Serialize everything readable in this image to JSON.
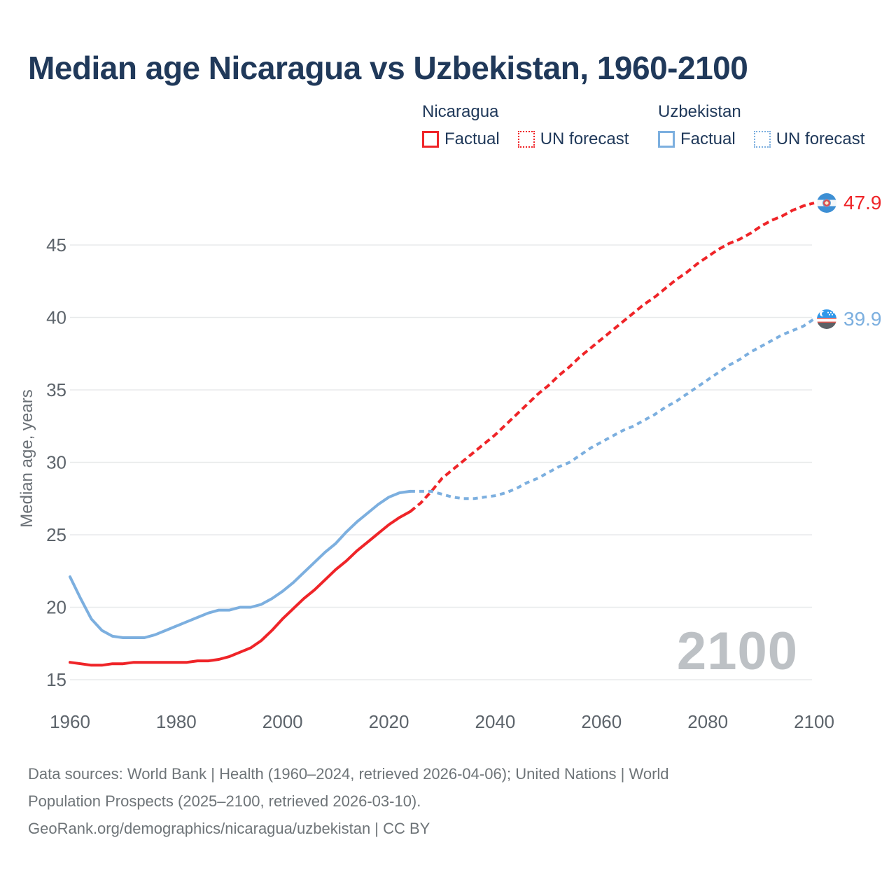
{
  "title": "Median age Nicaragua vs Uzbekistan, 1960-2100",
  "legend": {
    "groups": [
      {
        "country": "Nicaragua",
        "color": "#ef2428",
        "items": [
          {
            "label": "Factual",
            "style": "solid"
          },
          {
            "label": "UN forecast",
            "style": "dotted"
          }
        ]
      },
      {
        "country": "Uzbekistan",
        "color": "#7cafdf",
        "items": [
          {
            "label": "Factual",
            "style": "solid"
          },
          {
            "label": "UN forecast",
            "style": "dotted"
          }
        ]
      }
    ]
  },
  "chart_data": {
    "type": "line",
    "title": "Median age Nicaragua vs Uzbekistan, 1960-2100",
    "xlabel": "",
    "ylabel": "Median age, years",
    "xlim": [
      1960,
      2100
    ],
    "ylim": [
      15,
      45
    ],
    "grid": "horizontal",
    "legend_position": "top",
    "x_ticks": [
      1960,
      1980,
      2000,
      2020,
      2040,
      2060,
      2080,
      2100
    ],
    "y_ticks": [
      15,
      20,
      25,
      30,
      35,
      40,
      45
    ],
    "watermark": "2100",
    "series": [
      {
        "name": "Nicaragua Factual",
        "country": "Nicaragua",
        "kind": "factual",
        "color": "#ef2428",
        "line": "solid",
        "points": [
          [
            1960,
            16.2
          ],
          [
            1962,
            16.1
          ],
          [
            1964,
            16.0
          ],
          [
            1966,
            16.0
          ],
          [
            1968,
            16.1
          ],
          [
            1970,
            16.1
          ],
          [
            1972,
            16.2
          ],
          [
            1974,
            16.2
          ],
          [
            1976,
            16.2
          ],
          [
            1978,
            16.2
          ],
          [
            1980,
            16.2
          ],
          [
            1982,
            16.2
          ],
          [
            1984,
            16.3
          ],
          [
            1986,
            16.3
          ],
          [
            1988,
            16.4
          ],
          [
            1990,
            16.6
          ],
          [
            1992,
            16.9
          ],
          [
            1994,
            17.2
          ],
          [
            1996,
            17.7
          ],
          [
            1998,
            18.4
          ],
          [
            2000,
            19.2
          ],
          [
            2002,
            19.9
          ],
          [
            2004,
            20.6
          ],
          [
            2006,
            21.2
          ],
          [
            2008,
            21.9
          ],
          [
            2010,
            22.6
          ],
          [
            2012,
            23.2
          ],
          [
            2014,
            23.9
          ],
          [
            2016,
            24.5
          ],
          [
            2018,
            25.1
          ],
          [
            2020,
            25.7
          ],
          [
            2022,
            26.2
          ],
          [
            2024,
            26.6
          ]
        ]
      },
      {
        "name": "Nicaragua UN forecast",
        "country": "Nicaragua",
        "kind": "forecast",
        "color": "#ef2428",
        "line": "dashed",
        "points": [
          [
            2024,
            26.6
          ],
          [
            2026,
            27.2
          ],
          [
            2028,
            28.0
          ],
          [
            2030,
            28.9
          ],
          [
            2032,
            29.5
          ],
          [
            2034,
            30.1
          ],
          [
            2036,
            30.7
          ],
          [
            2038,
            31.3
          ],
          [
            2040,
            31.9
          ],
          [
            2042,
            32.6
          ],
          [
            2044,
            33.3
          ],
          [
            2046,
            34.0
          ],
          [
            2048,
            34.7
          ],
          [
            2050,
            35.3
          ],
          [
            2052,
            36.0
          ],
          [
            2054,
            36.6
          ],
          [
            2056,
            37.3
          ],
          [
            2058,
            37.9
          ],
          [
            2060,
            38.5
          ],
          [
            2062,
            39.1
          ],
          [
            2064,
            39.7
          ],
          [
            2066,
            40.3
          ],
          [
            2068,
            40.9
          ],
          [
            2070,
            41.4
          ],
          [
            2072,
            42.0
          ],
          [
            2074,
            42.6
          ],
          [
            2076,
            43.1
          ],
          [
            2078,
            43.7
          ],
          [
            2080,
            44.2
          ],
          [
            2082,
            44.7
          ],
          [
            2084,
            45.1
          ],
          [
            2086,
            45.4
          ],
          [
            2088,
            45.8
          ],
          [
            2090,
            46.3
          ],
          [
            2092,
            46.7
          ],
          [
            2094,
            47.0
          ],
          [
            2096,
            47.4
          ],
          [
            2098,
            47.7
          ],
          [
            2100,
            47.9
          ]
        ]
      },
      {
        "name": "Uzbekistan Factual",
        "country": "Uzbekistan",
        "kind": "factual",
        "color": "#7cafdf",
        "line": "solid",
        "points": [
          [
            1960,
            22.1
          ],
          [
            1962,
            20.6
          ],
          [
            1964,
            19.2
          ],
          [
            1966,
            18.4
          ],
          [
            1968,
            18.0
          ],
          [
            1970,
            17.9
          ],
          [
            1972,
            17.9
          ],
          [
            1974,
            17.9
          ],
          [
            1976,
            18.1
          ],
          [
            1978,
            18.4
          ],
          [
            1980,
            18.7
          ],
          [
            1982,
            19.0
          ],
          [
            1984,
            19.3
          ],
          [
            1986,
            19.6
          ],
          [
            1988,
            19.8
          ],
          [
            1990,
            19.8
          ],
          [
            1992,
            20.0
          ],
          [
            1994,
            20.0
          ],
          [
            1996,
            20.2
          ],
          [
            1998,
            20.6
          ],
          [
            2000,
            21.1
          ],
          [
            2002,
            21.7
          ],
          [
            2004,
            22.4
          ],
          [
            2006,
            23.1
          ],
          [
            2008,
            23.8
          ],
          [
            2010,
            24.4
          ],
          [
            2012,
            25.2
          ],
          [
            2014,
            25.9
          ],
          [
            2016,
            26.5
          ],
          [
            2018,
            27.1
          ],
          [
            2020,
            27.6
          ],
          [
            2022,
            27.9
          ],
          [
            2024,
            28.0
          ]
        ]
      },
      {
        "name": "Uzbekistan UN forecast",
        "country": "Uzbekistan",
        "kind": "forecast",
        "color": "#7cafdf",
        "line": "dashed",
        "points": [
          [
            2024,
            28.0
          ],
          [
            2026,
            28.0
          ],
          [
            2028,
            28.0
          ],
          [
            2030,
            27.8
          ],
          [
            2032,
            27.6
          ],
          [
            2034,
            27.5
          ],
          [
            2036,
            27.5
          ],
          [
            2038,
            27.6
          ],
          [
            2040,
            27.7
          ],
          [
            2042,
            27.9
          ],
          [
            2044,
            28.2
          ],
          [
            2046,
            28.6
          ],
          [
            2048,
            28.9
          ],
          [
            2050,
            29.3
          ],
          [
            2052,
            29.7
          ],
          [
            2054,
            30.0
          ],
          [
            2056,
            30.5
          ],
          [
            2058,
            31.0
          ],
          [
            2060,
            31.4
          ],
          [
            2062,
            31.8
          ],
          [
            2064,
            32.2
          ],
          [
            2066,
            32.5
          ],
          [
            2068,
            32.9
          ],
          [
            2070,
            33.3
          ],
          [
            2072,
            33.8
          ],
          [
            2074,
            34.2
          ],
          [
            2076,
            34.7
          ],
          [
            2078,
            35.2
          ],
          [
            2080,
            35.7
          ],
          [
            2082,
            36.2
          ],
          [
            2084,
            36.7
          ],
          [
            2086,
            37.1
          ],
          [
            2088,
            37.6
          ],
          [
            2090,
            38.0
          ],
          [
            2092,
            38.4
          ],
          [
            2094,
            38.8
          ],
          [
            2096,
            39.1
          ],
          [
            2098,
            39.4
          ],
          [
            2100,
            39.9
          ]
        ]
      }
    ],
    "end_labels": [
      {
        "country": "Nicaragua",
        "value": "47.9",
        "color": "#ef2428",
        "flag": "nicaragua-flag"
      },
      {
        "country": "Uzbekistan",
        "value": "39.9",
        "color": "#7cafdf",
        "flag": "uzbekistan-flag"
      }
    ]
  },
  "footer": {
    "lines": [
      "Data sources: World Bank | Health (1960–2024, retrieved 2026-04-06); United Nations | World",
      "Population Prospects (2025–2100, retrieved 2026-03-10).",
      "GeoRank.org/demographics/nicaragua/uzbekistan | CC BY"
    ]
  }
}
